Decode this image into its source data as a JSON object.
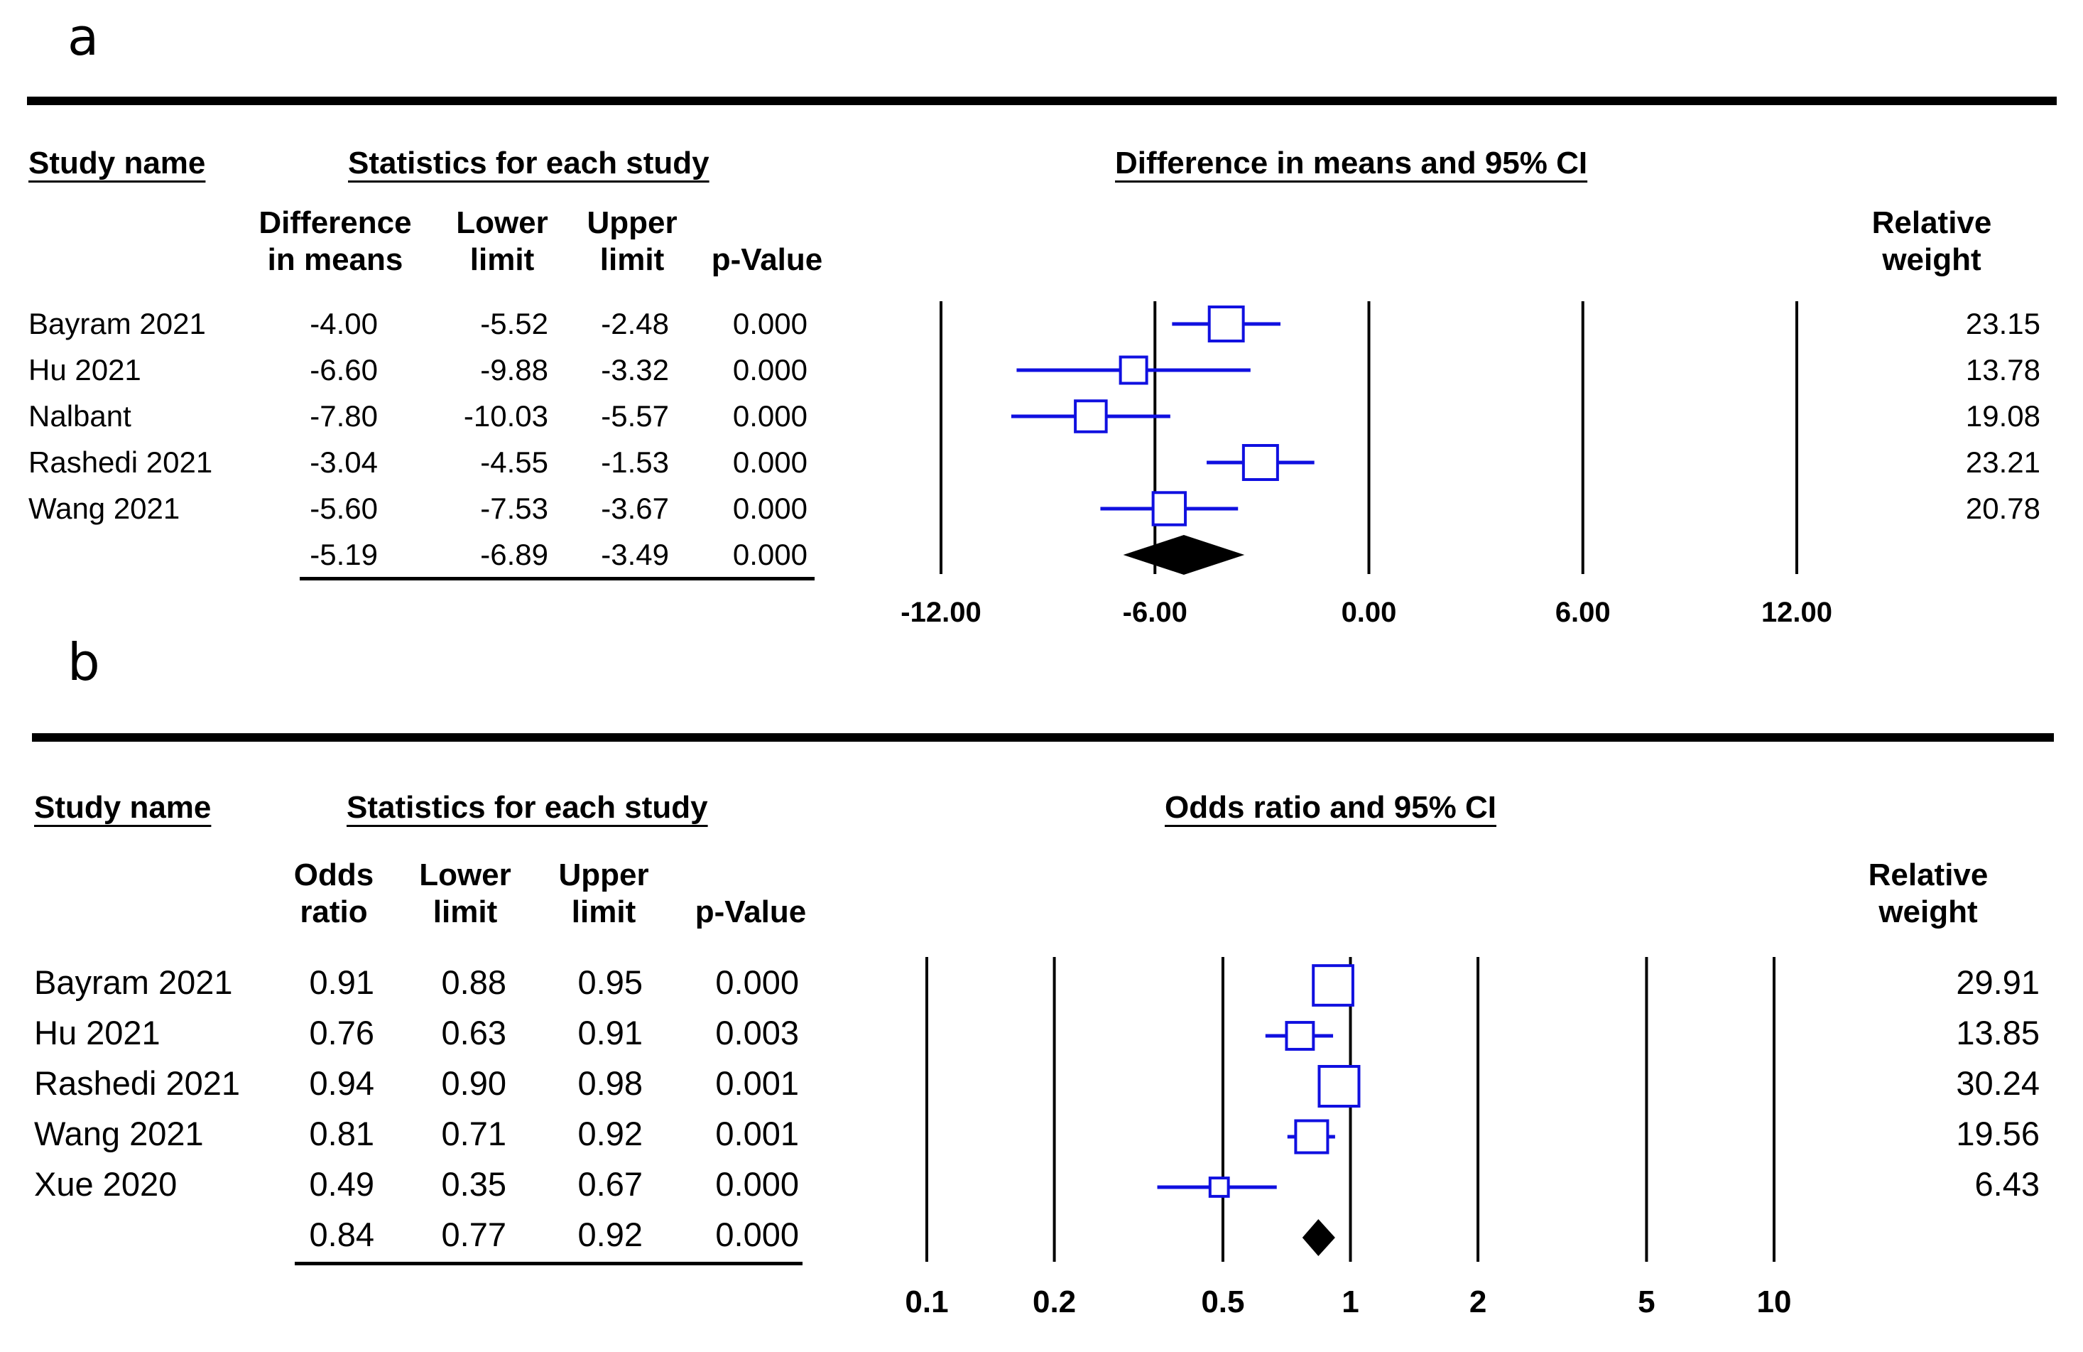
{
  "panels": [
    {
      "label": "a",
      "headers": {
        "study_name": "Study name",
        "statistics": "Statistics for each study",
        "plot_title": "Difference in means and 95% CI",
        "col1": [
          "Difference",
          "in means"
        ],
        "col2": [
          "Lower",
          "limit"
        ],
        "col3": [
          "Upper",
          "limit"
        ],
        "col4": "p-Value",
        "weight": [
          "Relative",
          "weight"
        ]
      },
      "rows": [
        {
          "study": "Bayram 2021",
          "effect": "-4.00",
          "lower": "-5.52",
          "upper": "-2.48",
          "p": "0.000",
          "weight": "23.15"
        },
        {
          "study": "Hu 2021",
          "effect": "-6.60",
          "lower": "-9.88",
          "upper": "-3.32",
          "p": "0.000",
          "weight": "13.78"
        },
        {
          "study": "Nalbant",
          "effect": "-7.80",
          "lower": "-10.03",
          "upper": "-5.57",
          "p": "0.000",
          "weight": "19.08"
        },
        {
          "study": "Rashedi 2021",
          "effect": "-3.04",
          "lower": "-4.55",
          "upper": "-1.53",
          "p": "0.000",
          "weight": "23.21"
        },
        {
          "study": "Wang 2021",
          "effect": "-5.60",
          "lower": "-7.53",
          "upper": "-3.67",
          "p": "0.000",
          "weight": "20.78"
        }
      ],
      "pooled": {
        "effect": "-5.19",
        "lower": "-6.89",
        "upper": "-3.49",
        "p": "0.000"
      },
      "ticks": [
        "-12.00",
        "-6.00",
        "0.00",
        "6.00",
        "12.00"
      ]
    },
    {
      "label": "b",
      "headers": {
        "study_name": "Study name",
        "statistics": "Statistics for each study",
        "plot_title": "Odds ratio and 95% CI",
        "col1": [
          "Odds",
          "ratio"
        ],
        "col2": [
          "Lower",
          "limit"
        ],
        "col3": [
          "Upper",
          "limit"
        ],
        "col4": "p-Value",
        "weight": [
          "Relative",
          "weight"
        ]
      },
      "rows": [
        {
          "study": "Bayram 2021",
          "effect": "0.91",
          "lower": "0.88",
          "upper": "0.95",
          "p": "0.000",
          "weight": "29.91"
        },
        {
          "study": "Hu 2021",
          "effect": "0.76",
          "lower": "0.63",
          "upper": "0.91",
          "p": "0.003",
          "weight": "13.85"
        },
        {
          "study": "Rashedi 2021",
          "effect": "0.94",
          "lower": "0.90",
          "upper": "0.98",
          "p": "0.001",
          "weight": "30.24"
        },
        {
          "study": "Wang 2021",
          "effect": "0.81",
          "lower": "0.71",
          "upper": "0.92",
          "p": "0.001",
          "weight": "19.56"
        },
        {
          "study": "Xue 2020",
          "effect": "0.49",
          "lower": "0.35",
          "upper": "0.67",
          "p": "0.000",
          "weight": "6.43"
        }
      ],
      "pooled": {
        "effect": "0.84",
        "lower": "0.77",
        "upper": "0.92",
        "p": "0.000"
      },
      "ticks": [
        "0.1",
        "0.2",
        "0.5",
        "1",
        "2",
        "5",
        "10"
      ]
    }
  ],
  "chart_data": [
    {
      "type": "forest",
      "title": "Difference in means and 95% CI",
      "scale": "linear",
      "xlim": [
        -12,
        12
      ],
      "xticks": [
        -12,
        -6,
        0,
        6,
        12
      ],
      "null_value": 0,
      "studies": [
        {
          "name": "Bayram 2021",
          "estimate": -4.0,
          "lower": -5.52,
          "upper": -2.48,
          "weight": 23.15
        },
        {
          "name": "Hu 2021",
          "estimate": -6.6,
          "lower": -9.88,
          "upper": -3.32,
          "weight": 13.78
        },
        {
          "name": "Nalbant",
          "estimate": -7.8,
          "lower": -10.03,
          "upper": -5.57,
          "weight": 19.08
        },
        {
          "name": "Rashedi 2021",
          "estimate": -3.04,
          "lower": -4.55,
          "upper": -1.53,
          "weight": 23.21
        },
        {
          "name": "Wang 2021",
          "estimate": -5.6,
          "lower": -7.53,
          "upper": -3.67,
          "weight": 20.78
        }
      ],
      "pooled": {
        "estimate": -5.19,
        "lower": -6.89,
        "upper": -3.49
      },
      "colors": {
        "study": "#1010e0",
        "pooled": "#000000"
      }
    },
    {
      "type": "forest",
      "title": "Odds ratio and 95% CI",
      "scale": "log",
      "xlim": [
        0.1,
        10
      ],
      "xticks": [
        0.1,
        0.2,
        0.5,
        1,
        2,
        5,
        10
      ],
      "null_value": 1,
      "studies": [
        {
          "name": "Bayram 2021",
          "estimate": 0.91,
          "lower": 0.88,
          "upper": 0.95,
          "weight": 29.91
        },
        {
          "name": "Hu 2021",
          "estimate": 0.76,
          "lower": 0.63,
          "upper": 0.91,
          "weight": 13.85
        },
        {
          "name": "Rashedi 2021",
          "estimate": 0.94,
          "lower": 0.9,
          "upper": 0.98,
          "weight": 30.24
        },
        {
          "name": "Wang 2021",
          "estimate": 0.81,
          "lower": 0.71,
          "upper": 0.92,
          "weight": 19.56
        },
        {
          "name": "Xue 2020",
          "estimate": 0.49,
          "lower": 0.35,
          "upper": 0.67,
          "weight": 6.43
        }
      ],
      "pooled": {
        "estimate": 0.84,
        "lower": 0.77,
        "upper": 0.92
      },
      "colors": {
        "study": "#1010e0",
        "pooled": "#000000"
      }
    }
  ]
}
